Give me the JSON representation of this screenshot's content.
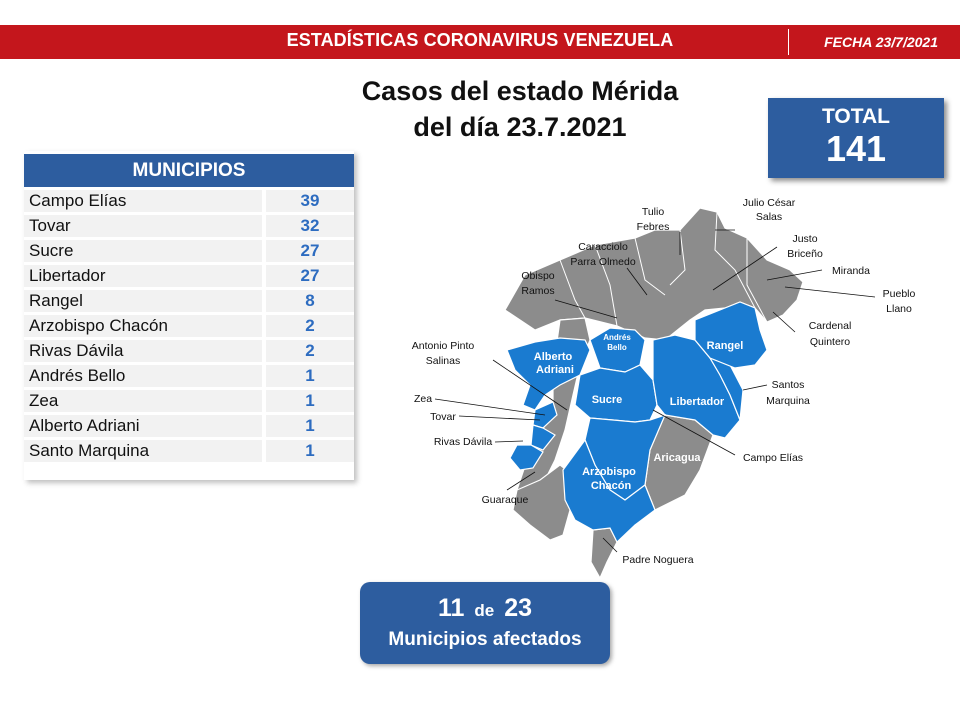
{
  "header": {
    "title": "ESTADÍSTICAS CORONAVIRUS VENEZUELA",
    "date": "FECHA 23/7/2021"
  },
  "heading": {
    "line1": "Casos del estado Mérida",
    "line2": "del día 23.7.2021"
  },
  "total": {
    "label": "TOTAL",
    "value": "141"
  },
  "table": {
    "header": "MUNICIPIOS",
    "rows": [
      {
        "name": "Campo Elías",
        "cases": "39"
      },
      {
        "name": "Tovar",
        "cases": "32"
      },
      {
        "name": "Sucre",
        "cases": "27"
      },
      {
        "name": "Libertador",
        "cases": "27"
      },
      {
        "name": "Rangel",
        "cases": "8"
      },
      {
        "name": "Arzobispo Chacón",
        "cases": "2"
      },
      {
        "name": "Rivas Dávila",
        "cases": "2"
      },
      {
        "name": "Andrés Bello",
        "cases": "1"
      },
      {
        "name": "Zea",
        "cases": "1"
      },
      {
        "name": "Alberto Adriani",
        "cases": "1"
      },
      {
        "name": "Santo Marquina",
        "cases": "1"
      }
    ]
  },
  "map": {
    "colors": {
      "affected": "#1a7bd0",
      "unaffected": "#8c8c8c",
      "border": "#ffffff"
    },
    "region_labels": {
      "alberto_adriani": [
        "Alberto",
        "Adriani"
      ],
      "andres_bello": [
        "Andrés",
        "Bello"
      ],
      "rangel": "Rangel",
      "sucre": "Sucre",
      "libertador": "Libertador",
      "arzobispo_chacon": [
        "Arzobispo",
        "Chacón"
      ],
      "aricagua": "Aricagua"
    },
    "callouts": {
      "julio_cesar_salas": [
        "Julio César",
        "Salas"
      ],
      "tulio_febres": [
        "Tulio",
        "Febres"
      ],
      "justo_briceno": [
        "Justo",
        "Briceño"
      ],
      "caracciolo": [
        "Caracciolo",
        "Parra Olmedo"
      ],
      "miranda": "Miranda",
      "obispo_ramos": [
        "Obispo",
        "Ramos"
      ],
      "pueblo_llano": [
        "Pueblo",
        "Llano"
      ],
      "cardenal_quintero": [
        "Cardenal",
        "Quintero"
      ],
      "antonio_pinto": [
        "Antonio Pinto",
        "Salinas"
      ],
      "santos_marquina": [
        "Santos",
        "Marquina"
      ],
      "zea": "Zea",
      "tovar": "Tovar",
      "rivas_davila": "Rivas Dávila",
      "campo_elias": "Campo Elías",
      "guaraque": "Guaraque",
      "padre_noguera": "Padre Noguera"
    }
  },
  "summary": {
    "affected": "11",
    "connector": "de",
    "total": "23",
    "label": "Municipios afectados"
  }
}
